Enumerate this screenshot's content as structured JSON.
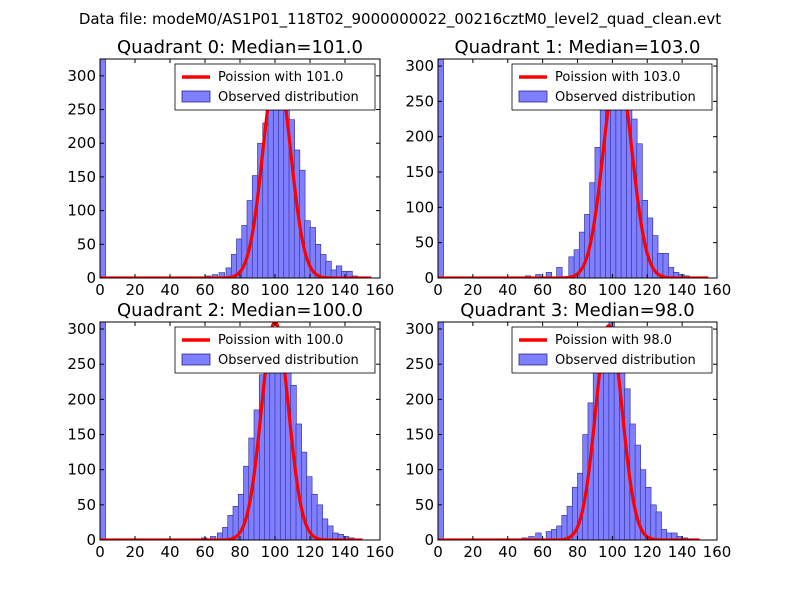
{
  "suptitle": "Data file: modeM0/AS1P01_118T02_9000000022_00216cztM0_level2_quad_clean.evt",
  "chart_data": [
    {
      "type": "bar",
      "title": "Quadrant 0: Median=101.0",
      "median": 101.0,
      "xlim": [
        0,
        160
      ],
      "ylim": [
        0,
        325
      ],
      "xticks": [
        "0",
        "20",
        "40",
        "60",
        "80",
        "100",
        "120",
        "140",
        "160"
      ],
      "yticks": [
        "0",
        "50",
        "100",
        "150",
        "200",
        "250",
        "300"
      ],
      "bin_width": 3.2,
      "bins": [
        [
          0,
          325
        ],
        [
          60,
          3
        ],
        [
          64,
          5
        ],
        [
          68,
          8
        ],
        [
          72,
          15
        ],
        [
          75,
          35
        ],
        [
          78,
          58
        ],
        [
          81,
          78
        ],
        [
          84,
          115
        ],
        [
          87,
          152
        ],
        [
          90,
          200
        ],
        [
          93,
          230
        ],
        [
          96,
          270
        ],
        [
          99,
          300
        ],
        [
          102,
          290
        ],
        [
          105,
          255
        ],
        [
          108,
          235
        ],
        [
          111,
          190
        ],
        [
          114,
          160
        ],
        [
          117,
          85
        ],
        [
          120,
          75
        ],
        [
          123,
          50
        ],
        [
          126,
          35
        ],
        [
          129,
          25
        ],
        [
          132,
          12
        ],
        [
          135,
          18
        ],
        [
          138,
          10
        ],
        [
          141,
          10
        ],
        [
          144,
          3
        ]
      ],
      "legend": [
        "Poission with 101.0",
        "Observed distribution"
      ],
      "poisson_peak": 312,
      "poisson_sd": 7.9,
      "poisson_range": [
        0,
        155
      ]
    },
    {
      "type": "bar",
      "title": "Quadrant 1: Median=103.0",
      "median": 103.0,
      "xlim": [
        0,
        160
      ],
      "ylim": [
        0,
        310
      ],
      "xticks": [
        "0",
        "20",
        "40",
        "60",
        "80",
        "100",
        "120",
        "140",
        "160"
      ],
      "yticks": [
        "0",
        "50",
        "100",
        "150",
        "200",
        "250",
        "300"
      ],
      "bin_width": 3.2,
      "bins": [
        [
          0,
          310
        ],
        [
          50,
          3
        ],
        [
          56,
          5
        ],
        [
          62,
          8
        ],
        [
          68,
          15
        ],
        [
          75,
          30
        ],
        [
          78,
          40
        ],
        [
          81,
          65
        ],
        [
          84,
          90
        ],
        [
          87,
          135
        ],
        [
          90,
          185
        ],
        [
          93,
          240
        ],
        [
          96,
          265
        ],
        [
          99,
          275
        ],
        [
          102,
          290
        ],
        [
          105,
          245
        ],
        [
          108,
          270
        ],
        [
          111,
          225
        ],
        [
          114,
          190
        ],
        [
          117,
          110
        ],
        [
          120,
          85
        ],
        [
          123,
          60
        ],
        [
          126,
          35
        ],
        [
          129,
          35
        ],
        [
          132,
          15
        ],
        [
          135,
          8
        ],
        [
          138,
          5
        ],
        [
          141,
          3
        ]
      ],
      "legend": [
        "Poission with 103.0",
        "Observed distribution"
      ],
      "poisson_peak": 298,
      "poisson_sd": 8.2,
      "poisson_range": [
        0,
        155
      ]
    },
    {
      "type": "bar",
      "title": "Quadrant 2: Median=100.0",
      "median": 100.0,
      "xlim": [
        0,
        160
      ],
      "ylim": [
        0,
        310
      ],
      "xticks": [
        "0",
        "20",
        "40",
        "60",
        "80",
        "100",
        "120",
        "140",
        "160"
      ],
      "yticks": [
        "0",
        "50",
        "100",
        "150",
        "200",
        "250",
        "300"
      ],
      "bin_width": 3.2,
      "bins": [
        [
          0,
          310
        ],
        [
          58,
          3
        ],
        [
          63,
          5
        ],
        [
          67,
          10
        ],
        [
          70,
          18
        ],
        [
          73,
          35
        ],
        [
          76,
          48
        ],
        [
          79,
          65
        ],
        [
          82,
          105
        ],
        [
          85,
          145
        ],
        [
          88,
          185
        ],
        [
          91,
          235
        ],
        [
          94,
          255
        ],
        [
          97,
          265
        ],
        [
          100,
          290
        ],
        [
          103,
          240
        ],
        [
          106,
          245
        ],
        [
          109,
          220
        ],
        [
          112,
          165
        ],
        [
          115,
          125
        ],
        [
          118,
          90
        ],
        [
          121,
          65
        ],
        [
          124,
          50
        ],
        [
          127,
          30
        ],
        [
          130,
          20
        ],
        [
          133,
          10
        ],
        [
          136,
          8
        ],
        [
          139,
          5
        ],
        [
          142,
          3
        ]
      ],
      "legend": [
        "Poission with 100.0",
        "Observed distribution"
      ],
      "poisson_peak": 310,
      "poisson_sd": 7.7,
      "poisson_range": [
        0,
        150
      ]
    },
    {
      "type": "bar",
      "title": "Quadrant 3: Median=98.0",
      "median": 98.0,
      "xlim": [
        0,
        160
      ],
      "ylim": [
        0,
        310
      ],
      "xticks": [
        "0",
        "20",
        "40",
        "60",
        "80",
        "100",
        "120",
        "140",
        "160"
      ],
      "yticks": [
        "0",
        "50",
        "100",
        "150",
        "200",
        "250",
        "300"
      ],
      "bin_width": 3.2,
      "bins": [
        [
          0,
          310
        ],
        [
          48,
          3
        ],
        [
          52,
          5
        ],
        [
          56,
          10
        ],
        [
          62,
          12
        ],
        [
          65,
          15
        ],
        [
          68,
          20
        ],
        [
          71,
          35
        ],
        [
          74,
          48
        ],
        [
          77,
          75
        ],
        [
          80,
          95
        ],
        [
          83,
          150
        ],
        [
          86,
          195
        ],
        [
          89,
          250
        ],
        [
          92,
          270
        ],
        [
          95,
          290
        ],
        [
          98,
          310
        ],
        [
          101,
          280
        ],
        [
          104,
          260
        ],
        [
          107,
          215
        ],
        [
          110,
          165
        ],
        [
          113,
          135
        ],
        [
          116,
          100
        ],
        [
          119,
          75
        ],
        [
          122,
          50
        ],
        [
          125,
          40
        ],
        [
          128,
          15
        ],
        [
          131,
          10
        ],
        [
          134,
          10
        ],
        [
          137,
          5
        ],
        [
          140,
          3
        ]
      ],
      "legend": [
        "Poission with 98.0",
        "Observed distribution"
      ],
      "poisson_peak": 305,
      "poisson_sd": 7.6,
      "poisson_range": [
        0,
        150
      ]
    }
  ]
}
